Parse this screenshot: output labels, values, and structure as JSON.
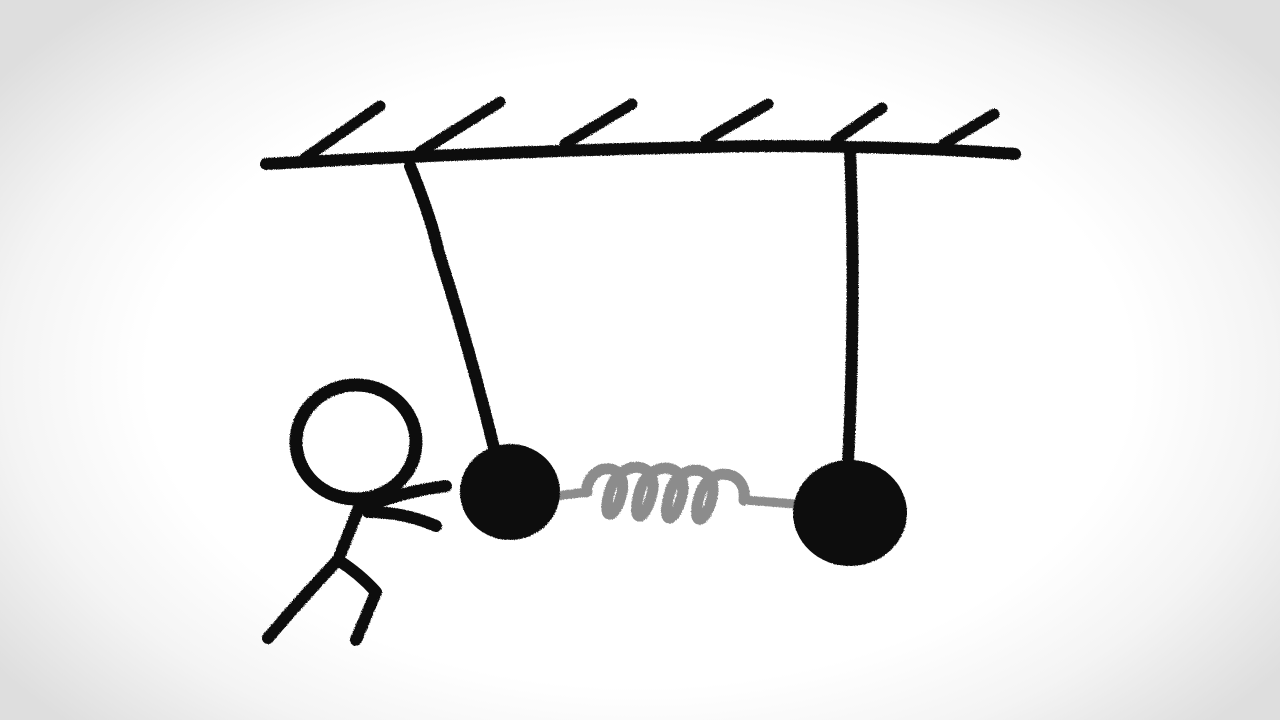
{
  "colors": {
    "background": "#ffffff",
    "ink": "#111111",
    "spring": "#8c8c8c",
    "vignette_edge": "#dedede"
  },
  "elements": {
    "ceiling": "ceiling-beam",
    "hatch_count": 6,
    "pendulums": [
      "left-pendulum",
      "right-pendulum"
    ],
    "spring": "coupling-spring",
    "figure": "stick-figure"
  }
}
